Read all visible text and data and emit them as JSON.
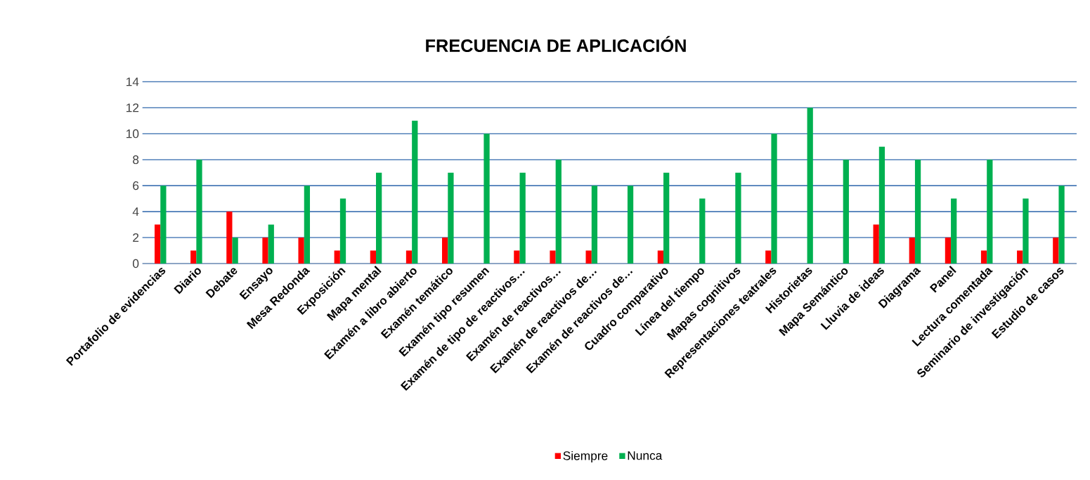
{
  "chart_data": {
    "type": "bar",
    "title": "FRECUENCIA DE APLICACIÓN",
    "categories": [
      "Portafolio de evidencias",
      "Diario",
      "Debate",
      "Ensayo",
      "Mesa Redonda",
      "Exposición",
      "Mapa mental",
      "Examén a libro abierto",
      "Examén temático",
      "Examén tipo resumen",
      "Examén de tipo de reactivos…",
      "Examén de reactivos…",
      "Examén de reactivos de…",
      "Examén de reactivos de…",
      "Cuadro comparativo",
      "Línea del tiempo",
      "Mapas cognitivos",
      "Representaciones teatrales",
      "Historietas",
      "Mapa Semántico",
      "Lluvia de ideas",
      "Diagrama",
      "Panel",
      "Lectura comentada",
      "Seminario de investigación",
      "Estudio de casos"
    ],
    "series": [
      {
        "name": "Siempre",
        "color": "#ff0000",
        "values": [
          3,
          1,
          4,
          2,
          2,
          1,
          1,
          1,
          2,
          0,
          1,
          1,
          1,
          0,
          1,
          0,
          0,
          1,
          0,
          0,
          3,
          2,
          2,
          1,
          1,
          2
        ]
      },
      {
        "name": "Nunca",
        "color": "#00b050",
        "values": [
          6,
          8,
          2,
          3,
          6,
          5,
          7,
          11,
          7,
          10,
          7,
          8,
          6,
          6,
          7,
          5,
          7,
          10,
          12,
          8,
          9,
          8,
          5,
          8,
          5,
          6
        ]
      }
    ],
    "ylim": [
      0,
      14
    ],
    "yticks": [
      0,
      2,
      4,
      6,
      8,
      10,
      12,
      14
    ],
    "grid": "y",
    "legend": "bottom"
  }
}
